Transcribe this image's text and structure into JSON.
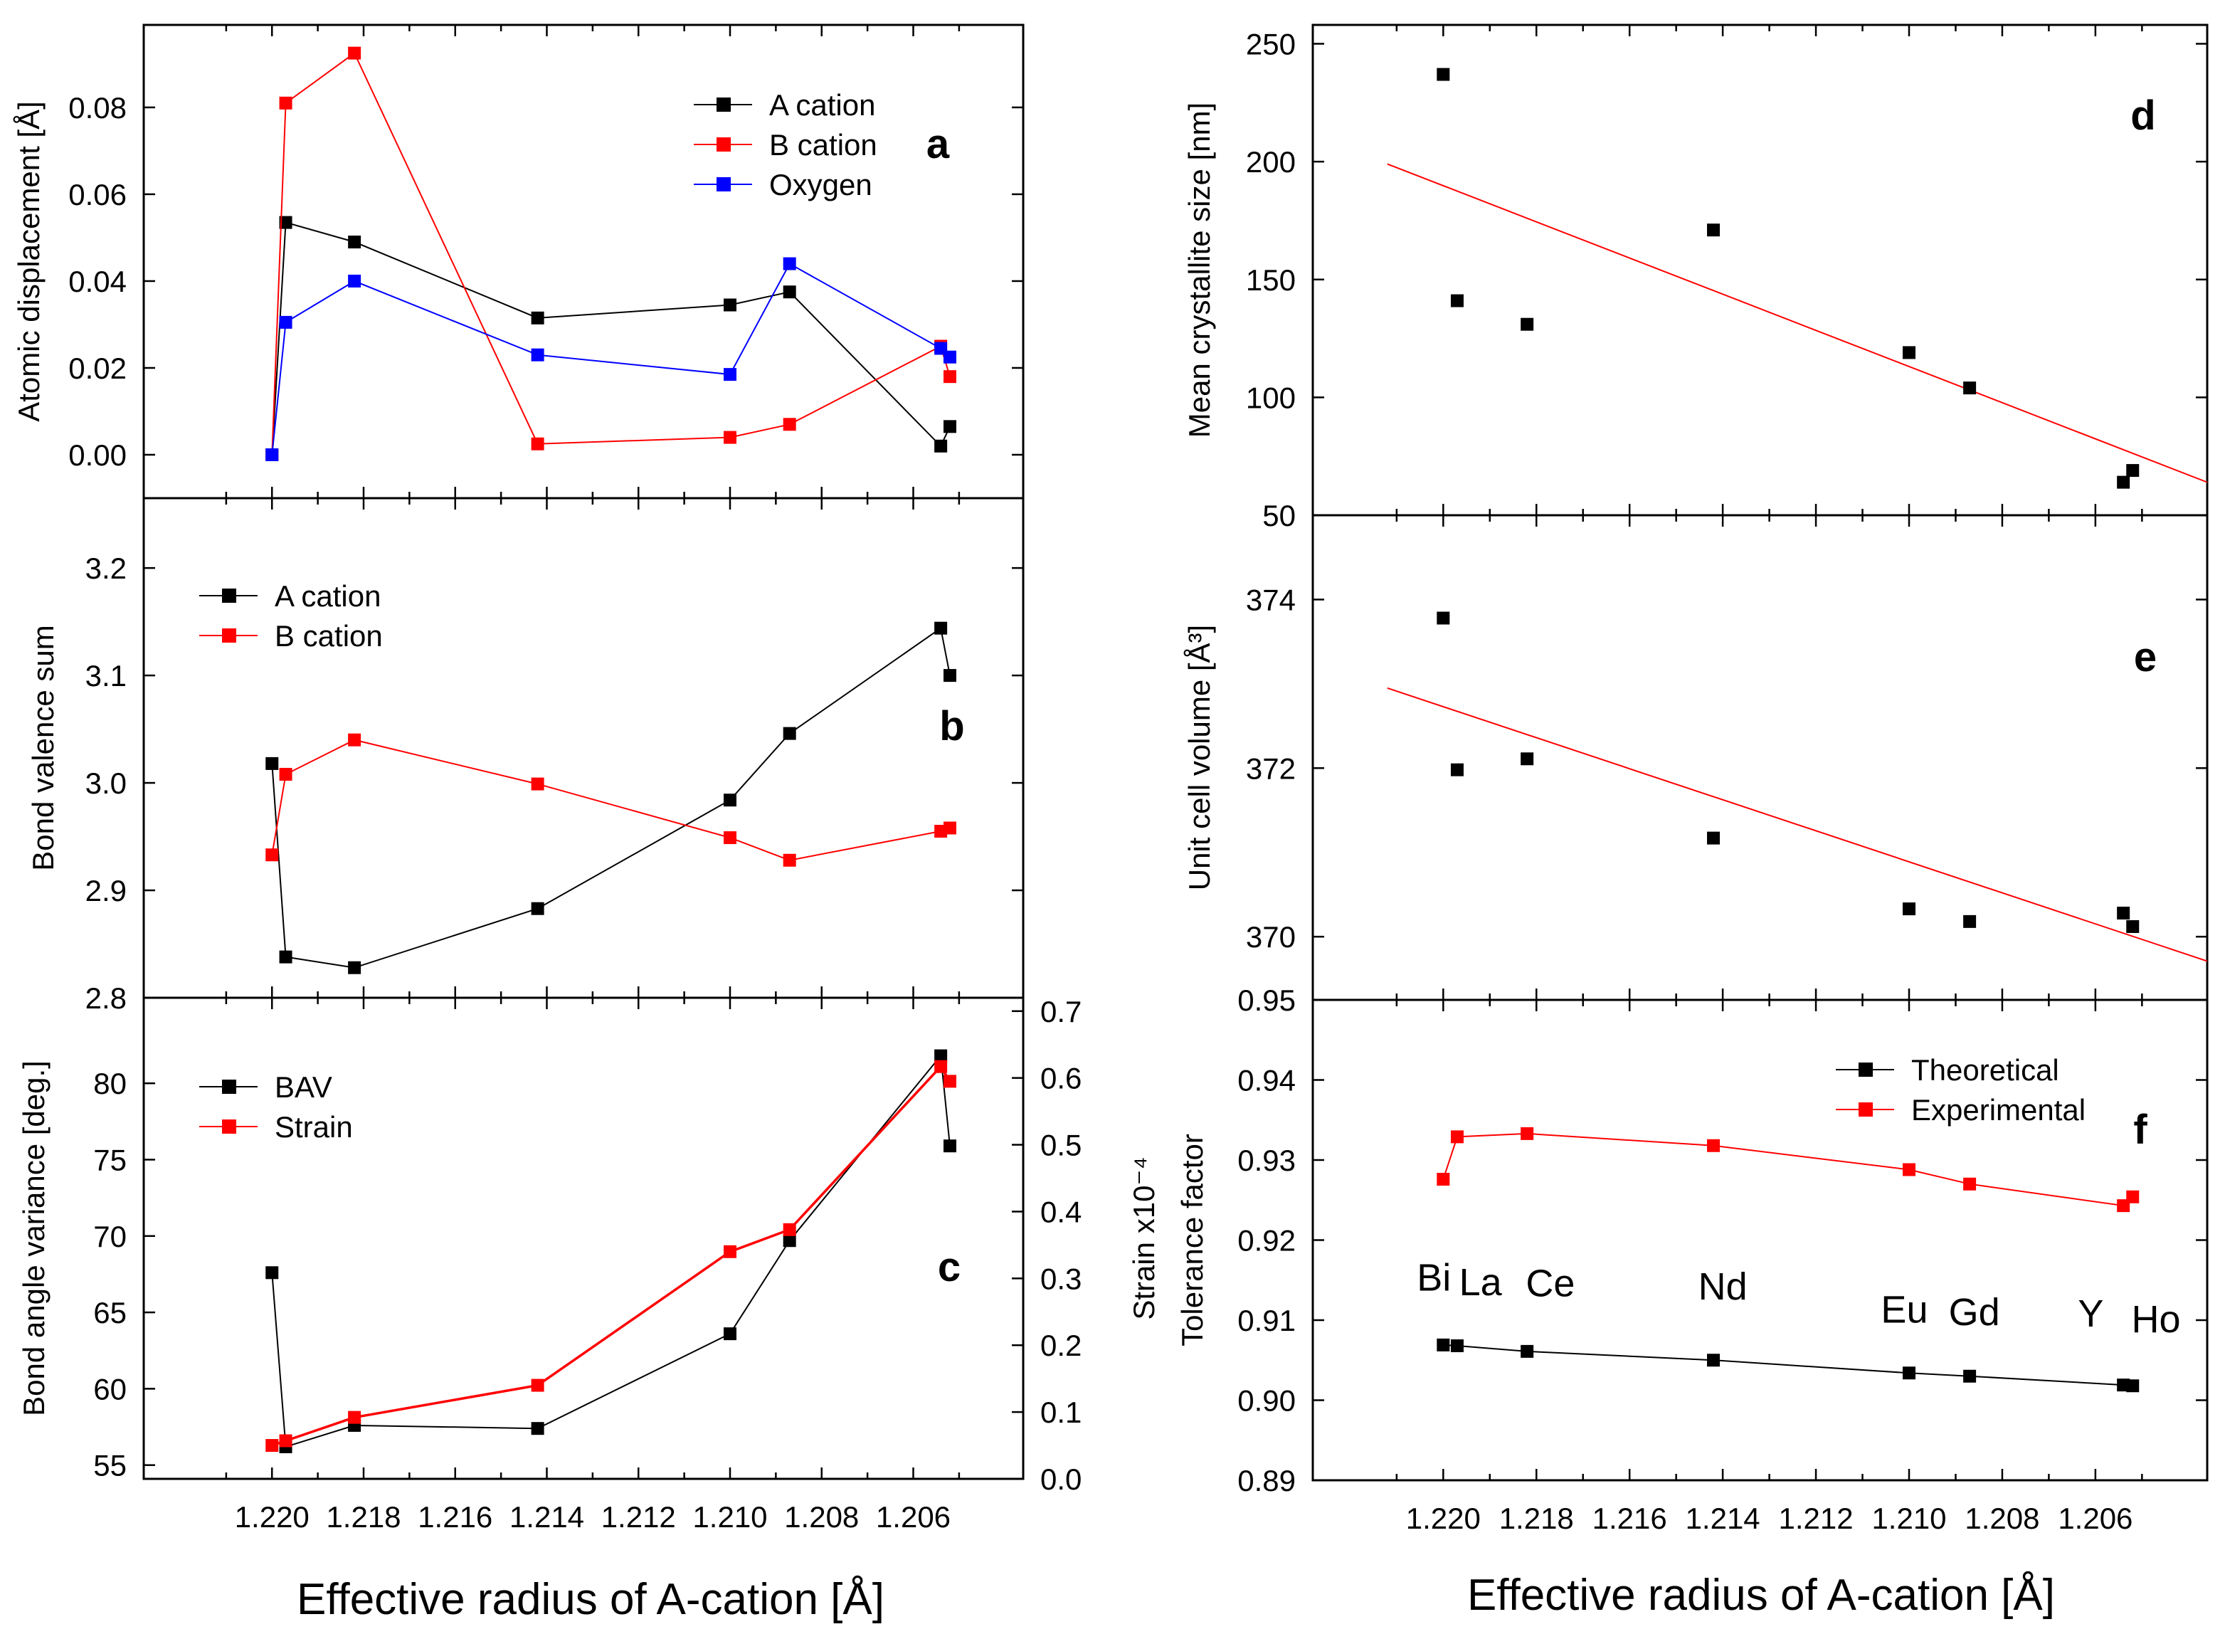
{
  "figure": {
    "xlabel_left": "Effective radius of A-cation [Å]",
    "xlabel_right": "Effective radius of A-cation [Å]"
  },
  "chart_data": [
    {
      "id": "a",
      "panel_label": "a",
      "type": "line",
      "ylabel": "Atomic displacement [Å]",
      "xlim": [
        1.2228,
        1.2036
      ],
      "ylim": [
        -0.01,
        0.099
      ],
      "x_ticks": [
        1.22,
        1.218,
        1.216,
        1.214,
        1.212,
        1.21,
        1.208,
        1.206
      ],
      "x_tick_labels": [],
      "y_ticks": [
        0,
        0.02,
        0.04,
        0.06,
        0.08
      ],
      "y_tick_labels": [
        "0.00",
        "0.02",
        "0.04",
        "0.06",
        "0.08"
      ],
      "legend_position": "top-right",
      "series": [
        {
          "name": "A cation",
          "color": "#000000",
          "x": [
            1.22,
            1.2197,
            1.2182,
            1.2142,
            1.21,
            1.2087,
            1.2054,
            1.2052
          ],
          "y": [
            0.0,
            0.0535,
            0.049,
            0.0315,
            0.0345,
            0.0375,
            0.002,
            0.0065
          ]
        },
        {
          "name": "B cation",
          "color": "#ff0000",
          "x": [
            1.22,
            1.2197,
            1.2182,
            1.2142,
            1.21,
            1.2087,
            1.2054,
            1.2052
          ],
          "y": [
            0.0,
            0.081,
            0.0925,
            0.0025,
            0.004,
            0.007,
            0.025,
            0.018
          ]
        },
        {
          "name": "Oxygen",
          "color": "#0000ff",
          "x": [
            1.22,
            1.2197,
            1.2182,
            1.2142,
            1.21,
            1.2087,
            1.2054,
            1.2052
          ],
          "y": [
            0.0,
            0.0305,
            0.04,
            0.023,
            0.0185,
            0.044,
            0.0245,
            0.0225
          ]
        }
      ]
    },
    {
      "id": "b",
      "panel_label": "b",
      "type": "line",
      "ylabel": "Bond valence sum",
      "xlim": [
        1.2228,
        1.2036
      ],
      "ylim": [
        2.8,
        3.265
      ],
      "x_ticks": [
        1.22,
        1.218,
        1.216,
        1.214,
        1.212,
        1.21,
        1.208,
        1.206
      ],
      "x_tick_labels": [],
      "y_ticks": [
        2.8,
        2.9,
        3.0,
        3.1,
        3.2
      ],
      "y_tick_labels": [
        "2.8",
        "2.9",
        "3.0",
        "3.1",
        "3.2"
      ],
      "legend_position": "top-left",
      "series": [
        {
          "name": "A cation",
          "color": "#000000",
          "x": [
            1.22,
            1.2197,
            1.2182,
            1.2142,
            1.21,
            1.2087,
            1.2054,
            1.2052
          ],
          "y": [
            3.018,
            2.838,
            2.828,
            2.883,
            2.984,
            3.046,
            3.144,
            3.1
          ]
        },
        {
          "name": "B cation",
          "color": "#ff0000",
          "x": [
            1.22,
            1.2197,
            1.2182,
            1.2142,
            1.21,
            1.2087,
            1.2054,
            1.2052
          ],
          "y": [
            2.933,
            3.008,
            3.04,
            2.999,
            2.949,
            2.928,
            2.955,
            2.958
          ]
        }
      ]
    },
    {
      "id": "c",
      "panel_label": "c",
      "type": "line",
      "ylabel": "Bond angle variance [deg.]",
      "y2label": "Strain x10⁻⁴",
      "xlim": [
        1.2228,
        1.2036
      ],
      "ylim": [
        54.1,
        85.6
      ],
      "y2lim": [
        0,
        0.72
      ],
      "x_ticks": [
        1.22,
        1.218,
        1.216,
        1.214,
        1.212,
        1.21,
        1.208,
        1.206
      ],
      "x_tick_labels": [
        "1.220",
        "1.218",
        "1.216",
        "1.214",
        "1.212",
        "1.210",
        "1.208",
        "1.206"
      ],
      "y_ticks": [
        55,
        60,
        65,
        70,
        75,
        80
      ],
      "y_tick_labels": [
        "55",
        "60",
        "65",
        "70",
        "75",
        "80"
      ],
      "y2_ticks": [
        0,
        0.1,
        0.2,
        0.3,
        0.4,
        0.5,
        0.6,
        0.7
      ],
      "y2_tick_labels": [
        "0.0",
        "0.1",
        "0.2",
        "0.3",
        "0.4",
        "0.5",
        "0.6",
        "0.7"
      ],
      "legend_position": "top-left",
      "series": [
        {
          "name": "BAV",
          "color": "#000000",
          "axis": "left",
          "x": [
            1.22,
            1.2197,
            1.2182,
            1.2142,
            1.21,
            1.2087,
            1.2054,
            1.2052
          ],
          "y": [
            67.6,
            56.2,
            57.6,
            57.4,
            63.6,
            69.7,
            81.8,
            75.9
          ]
        },
        {
          "name": "Strain",
          "color": "#ff0000",
          "axis": "right",
          "x": [
            1.22,
            1.2197,
            1.2182,
            1.2142,
            1.21,
            1.2087,
            1.2054,
            1.2052
          ],
          "y": [
            0.05,
            0.057,
            0.092,
            0.14,
            0.34,
            0.373,
            0.617,
            0.595
          ]
        }
      ]
    },
    {
      "id": "d",
      "panel_label": "d",
      "type": "scatter",
      "ylabel": "Mean crystallite size [nm]",
      "xlim": [
        1.2228,
        1.2036
      ],
      "ylim": [
        50,
        258
      ],
      "x_ticks": [
        1.22,
        1.218,
        1.216,
        1.214,
        1.212,
        1.21,
        1.208,
        1.206
      ],
      "x_tick_labels": [],
      "y_ticks": [
        50,
        100,
        150,
        200,
        250
      ],
      "y_tick_labels": [
        "50",
        "100",
        "150",
        "200",
        "250"
      ],
      "series": [
        {
          "name": "data",
          "color": "#000000",
          "x": [
            1.22,
            1.2197,
            1.2182,
            1.2142,
            1.21,
            1.2087,
            1.2054,
            1.2052
          ],
          "y": [
            237,
            141,
            131,
            171,
            119,
            104,
            64,
            69
          ]
        }
      ],
      "fit_line": {
        "color": "#ff0000",
        "x": [
          1.2212,
          1.2036
        ],
        "y": [
          199,
          64
        ]
      }
    },
    {
      "id": "e",
      "panel_label": "e",
      "type": "scatter",
      "ylabel": "Unit cell volume [Å³]",
      "xlim": [
        1.2228,
        1.2036
      ],
      "ylim": [
        369.25,
        375.0
      ],
      "x_ticks": [
        1.22,
        1.218,
        1.216,
        1.214,
        1.212,
        1.21,
        1.208,
        1.206
      ],
      "x_tick_labels": [],
      "y_ticks": [
        370,
        372,
        374
      ],
      "y_tick_labels": [
        "370",
        "372",
        "374"
      ],
      "series": [
        {
          "name": "data",
          "color": "#000000",
          "x": [
            1.22,
            1.2197,
            1.2182,
            1.2142,
            1.21,
            1.2087,
            1.2054,
            1.2052
          ],
          "y": [
            373.78,
            371.98,
            372.11,
            371.17,
            370.33,
            370.18,
            370.28,
            370.12
          ]
        }
      ],
      "fit_line": {
        "color": "#ff0000",
        "x": [
          1.2212,
          1.2036
        ],
        "y": [
          372.95,
          369.71
        ]
      }
    },
    {
      "id": "f",
      "panel_label": "f",
      "type": "line",
      "ylabel": "Tolerance factor",
      "xlim": [
        1.2228,
        1.2036
      ],
      "ylim": [
        0.89,
        0.95
      ],
      "x_ticks": [
        1.22,
        1.218,
        1.216,
        1.214,
        1.212,
        1.21,
        1.208,
        1.206
      ],
      "x_tick_labels": [
        "1.220",
        "1.218",
        "1.216",
        "1.214",
        "1.212",
        "1.210",
        "1.208",
        "1.206"
      ],
      "y_ticks": [
        0.89,
        0.9,
        0.91,
        0.92,
        0.93,
        0.94,
        0.95
      ],
      "y_tick_labels": [
        "0.89",
        "0.90",
        "0.91",
        "0.92",
        "0.93",
        "0.94",
        "0.95"
      ],
      "legend_position": "top-right",
      "series": [
        {
          "name": "Theoretical",
          "color": "#000000",
          "x": [
            1.22,
            1.2197,
            1.2182,
            1.2142,
            1.21,
            1.2087,
            1.2054,
            1.2052
          ],
          "y": [
            0.9069,
            0.9068,
            0.9061,
            0.905,
            0.9034,
            0.903,
            0.9019,
            0.9018
          ]
        },
        {
          "name": "Experimental",
          "color": "#ff0000",
          "x": [
            1.22,
            1.2197,
            1.2182,
            1.2142,
            1.21,
            1.2087,
            1.2054,
            1.2052
          ],
          "y": [
            0.9276,
            0.9329,
            0.9333,
            0.9318,
            0.9288,
            0.927,
            0.9243,
            0.9254
          ]
        }
      ],
      "annotations": [
        {
          "text": "Bi",
          "x": 1.2202,
          "y": 0.9137
        },
        {
          "text": "La",
          "x": 1.2192,
          "y": 0.9131
        },
        {
          "text": "Ce",
          "x": 1.2177,
          "y": 0.913
        },
        {
          "text": "Nd",
          "x": 1.214,
          "y": 0.9126
        },
        {
          "text": "Eu",
          "x": 1.2101,
          "y": 0.9097
        },
        {
          "text": "Gd",
          "x": 1.2086,
          "y": 0.9094
        },
        {
          "text": "Y",
          "x": 1.2061,
          "y": 0.9092
        },
        {
          "text": "Ho",
          "x": 1.2047,
          "y": 0.9085
        }
      ]
    }
  ]
}
